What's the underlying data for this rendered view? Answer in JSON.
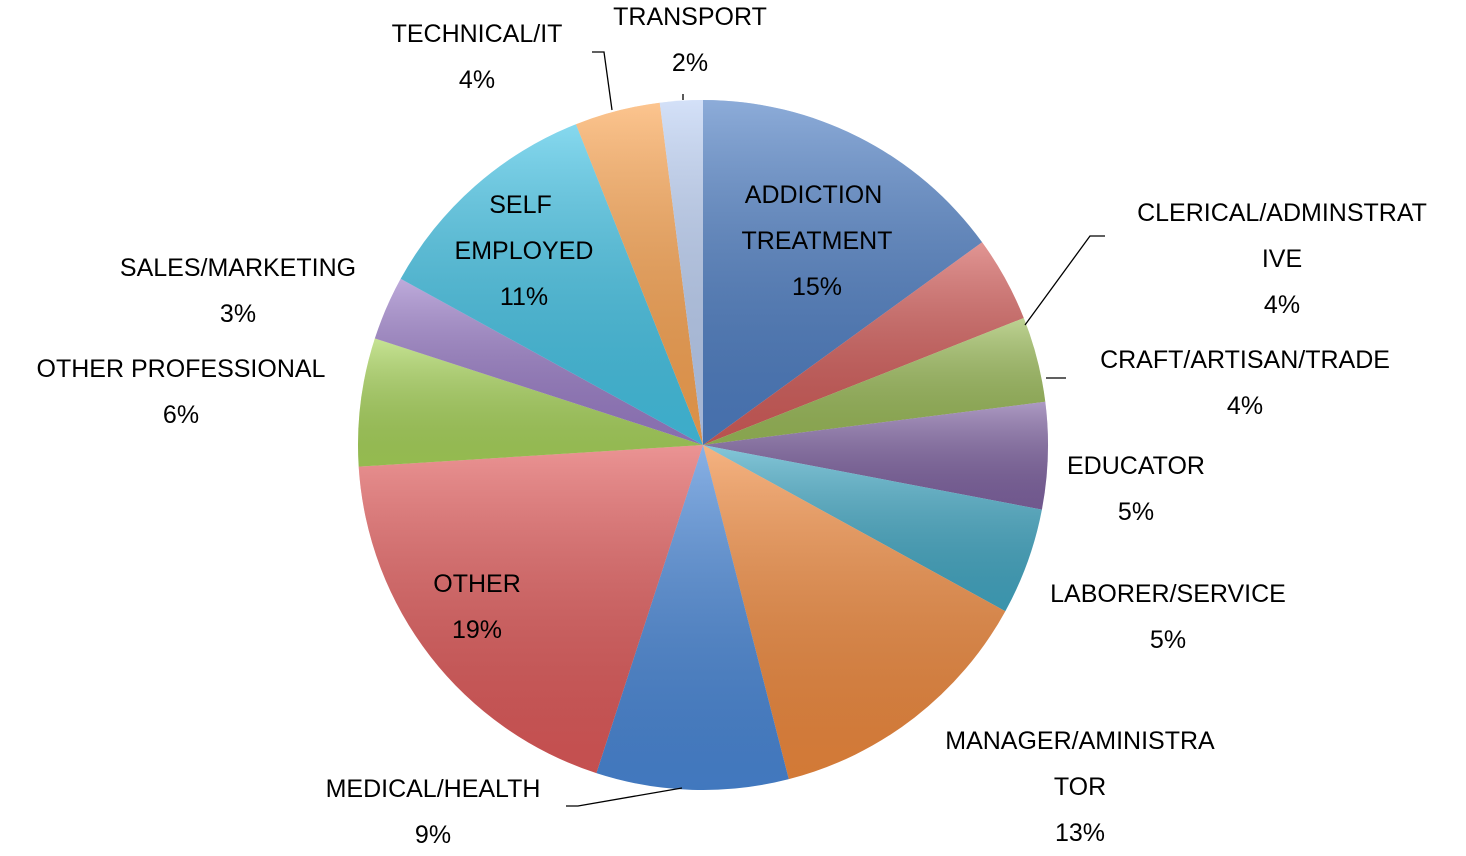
{
  "chart_data": {
    "type": "pie",
    "categories": [
      "ADDICTION TREATMENT",
      "CLERICAL/ADMINSTRATIVE",
      "CRAFT/ARTISAN/TRADE",
      "EDUCATOR",
      "LABORER/SERVICE",
      "MANAGER/AMINISTRATOR",
      "MEDICAL/HEALTH",
      "OTHER",
      "OTHER PROFESSIONAL",
      "SALES/MARKETING",
      "SELF EMPLOYED",
      "TECHNICAL/IT",
      "TRANSPORT"
    ],
    "values": [
      15,
      4,
      4,
      5,
      5,
      13,
      9,
      19,
      6,
      3,
      11,
      4,
      2
    ],
    "value_labels": [
      "15%",
      "4%",
      "4%",
      "5%",
      "5%",
      "13%",
      "9%",
      "19%",
      "6%",
      "3%",
      "11%",
      "4%",
      "2%"
    ],
    "colors": [
      "#4f7fc4",
      "#d25d5a",
      "#9bbb59",
      "#8064a2",
      "#43a8c4",
      "#f08a3e",
      "#4a88d8",
      "#e05a5a",
      "#a8d45a",
      "#9b7ec8",
      "#45c4e6",
      "#fba552",
      "#bcd0f4"
    ]
  }
}
